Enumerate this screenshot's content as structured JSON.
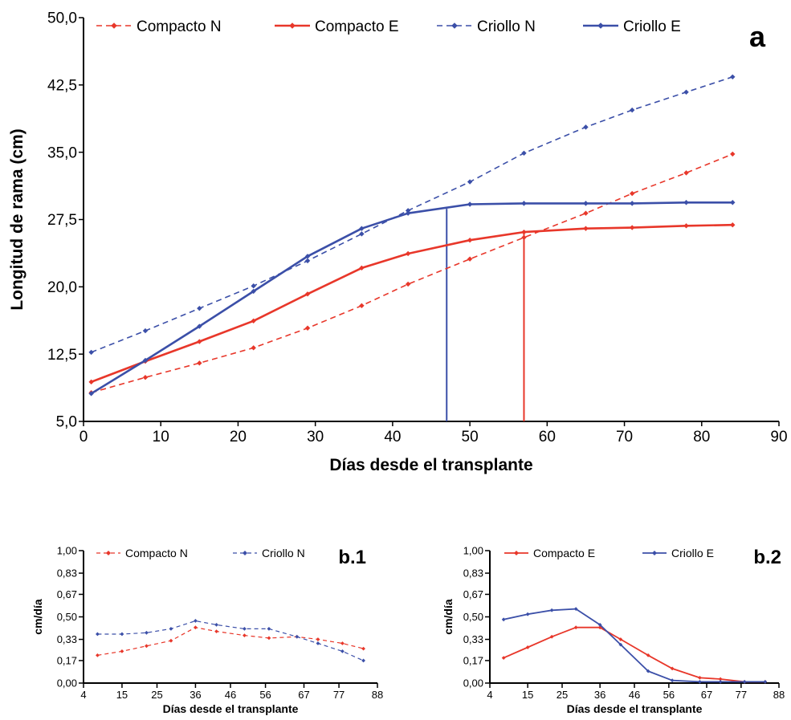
{
  "colors": {
    "compacto": "#e8372a",
    "criollo": "#3b4fa8",
    "axis": "#000000"
  },
  "chart_data": [
    {
      "id": "a",
      "type": "line",
      "panel_label": "a",
      "xlabel": "Días desde el transplante",
      "ylabel": "Longitud de rama (cm)",
      "xlim": [
        0,
        90
      ],
      "ylim": [
        5,
        50
      ],
      "xticks": [
        0,
        10,
        20,
        30,
        40,
        50,
        60,
        70,
        80,
        90
      ],
      "xtick_labels": [
        "0",
        "10",
        "20",
        "30",
        "40",
        "50",
        "60",
        "70",
        "80",
        "90"
      ],
      "yticks": [
        5,
        12.5,
        20,
        27.5,
        35,
        42.5,
        50
      ],
      "ytick_labels": [
        "5,0",
        "12,5",
        "20,0",
        "27,5",
        "35,0",
        "42,5",
        "50,0"
      ],
      "grid": false,
      "legend_position": "top",
      "series": [
        {
          "name": "Compacto N",
          "color_key": "compacto",
          "style": "dashed",
          "x": [
            1,
            8,
            15,
            22,
            29,
            36,
            42,
            50,
            57,
            65,
            71,
            78,
            84
          ],
          "y": [
            8.2,
            9.9,
            11.5,
            13.2,
            15.4,
            17.9,
            20.3,
            23.1,
            25.5,
            28.2,
            30.4,
            32.7,
            34.8
          ]
        },
        {
          "name": "Compacto E",
          "color_key": "compacto",
          "style": "solid",
          "x": [
            1,
            8,
            15,
            22,
            29,
            36,
            42,
            50,
            57,
            65,
            71,
            78,
            84
          ],
          "y": [
            9.4,
            11.7,
            13.9,
            16.2,
            19.2,
            22.1,
            23.7,
            25.2,
            26.1,
            26.5,
            26.6,
            26.8,
            26.9
          ]
        },
        {
          "name": "Criollo N",
          "color_key": "criollo",
          "style": "dashed",
          "x": [
            1,
            8,
            15,
            22,
            29,
            36,
            42,
            50,
            57,
            65,
            71,
            78,
            84
          ],
          "y": [
            12.7,
            15.1,
            17.6,
            20.1,
            22.9,
            25.9,
            28.5,
            31.7,
            34.9,
            37.8,
            39.7,
            41.7,
            43.4
          ]
        },
        {
          "name": "Criollo E",
          "color_key": "criollo",
          "style": "solid",
          "x": [
            1,
            8,
            15,
            22,
            29,
            36,
            42,
            50,
            57,
            65,
            71,
            78,
            84
          ],
          "y": [
            8.1,
            11.8,
            15.6,
            19.5,
            23.4,
            26.5,
            28.2,
            29.2,
            29.3,
            29.3,
            29.3,
            29.4,
            29.4
          ]
        }
      ],
      "reference_lines": [
        {
          "color_key": "criollo",
          "x": 47,
          "y_from": 5,
          "y_to": 28.7
        },
        {
          "color_key": "compacto",
          "x": 57,
          "y_from": 5,
          "y_to": 26.1
        }
      ]
    },
    {
      "id": "b1",
      "type": "line",
      "panel_label": "b.1",
      "xlabel": "Días desde el transplante",
      "ylabel": "cm/día",
      "xlim": [
        4,
        88
      ],
      "ylim": [
        0,
        1
      ],
      "xticks": [
        4,
        15,
        25,
        36,
        46,
        56,
        67,
        77,
        88
      ],
      "xtick_labels": [
        "4",
        "15",
        "25",
        "36",
        "46",
        "56",
        "67",
        "77",
        "88"
      ],
      "yticks": [
        0,
        0.17,
        0.33,
        0.5,
        0.67,
        0.83,
        1
      ],
      "ytick_labels": [
        "0,00",
        "0,17",
        "0,33",
        "0,50",
        "0,67",
        "0,83",
        "1,00"
      ],
      "grid": false,
      "legend_position": "top",
      "series": [
        {
          "name": "Compacto N",
          "color_key": "compacto",
          "style": "dashed",
          "x": [
            8,
            15,
            22,
            29,
            36,
            42,
            50,
            57,
            65,
            71,
            78,
            84
          ],
          "y": [
            0.21,
            0.24,
            0.28,
            0.32,
            0.42,
            0.39,
            0.36,
            0.34,
            0.35,
            0.33,
            0.3,
            0.26
          ]
        },
        {
          "name": "Criollo N",
          "color_key": "criollo",
          "style": "dashed",
          "x": [
            8,
            15,
            22,
            29,
            36,
            42,
            50,
            57,
            65,
            71,
            78,
            84
          ],
          "y": [
            0.37,
            0.37,
            0.38,
            0.41,
            0.47,
            0.44,
            0.41,
            0.41,
            0.35,
            0.3,
            0.24,
            0.17
          ]
        }
      ]
    },
    {
      "id": "b2",
      "type": "line",
      "panel_label": "b.2",
      "xlabel": "Días desde el transplante",
      "ylabel": "cm/día",
      "xlim": [
        4,
        88
      ],
      "ylim": [
        0,
        1
      ],
      "xticks": [
        4,
        15,
        25,
        36,
        46,
        56,
        67,
        77,
        88
      ],
      "xtick_labels": [
        "4",
        "15",
        "25",
        "36",
        "46",
        "56",
        "67",
        "77",
        "88"
      ],
      "yticks": [
        0,
        0.17,
        0.33,
        0.5,
        0.67,
        0.83,
        1
      ],
      "ytick_labels": [
        "0,00",
        "0,17",
        "0,33",
        "0,50",
        "0,67",
        "0,83",
        "1,00"
      ],
      "grid": false,
      "legend_position": "top",
      "series": [
        {
          "name": "Compacto E",
          "color_key": "compacto",
          "style": "solid",
          "x": [
            8,
            15,
            22,
            29,
            36,
            42,
            50,
            57,
            65,
            71,
            78,
            84
          ],
          "y": [
            0.19,
            0.27,
            0.35,
            0.42,
            0.42,
            0.33,
            0.21,
            0.11,
            0.04,
            0.03,
            0.01,
            0.01
          ]
        },
        {
          "name": "Criollo E",
          "color_key": "criollo",
          "style": "solid",
          "x": [
            8,
            15,
            22,
            29,
            36,
            42,
            50,
            57,
            65,
            71,
            78,
            84
          ],
          "y": [
            0.48,
            0.52,
            0.55,
            0.56,
            0.44,
            0.29,
            0.09,
            0.02,
            0.01,
            0.01,
            0.01,
            0.01
          ]
        }
      ]
    }
  ]
}
